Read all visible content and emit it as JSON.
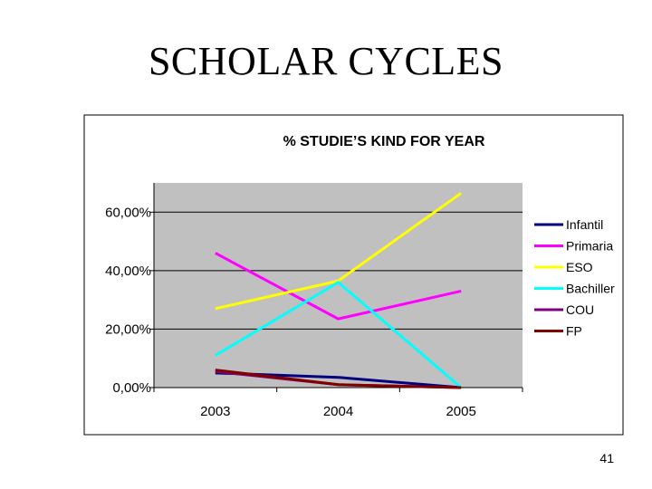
{
  "slide": {
    "title": "SCHOLAR CYCLES",
    "page_number": "41"
  },
  "chart_data": {
    "type": "line",
    "title": "% STUDIE’S KIND FOR YEAR",
    "xlabel": "",
    "ylabel": "",
    "categories": [
      "2003",
      "2004",
      "2005"
    ],
    "ylim": [
      0,
      0.7
    ],
    "yticks": [
      0,
      0.2,
      0.4,
      0.6
    ],
    "ytick_labels": [
      "0,00%",
      "20,00%",
      "40,00%",
      "60,00%"
    ],
    "grid": "horizontal",
    "plot_background": "#c0c0c0",
    "legend_position": "right",
    "series": [
      {
        "name": "Infantil",
        "color": "#000080",
        "values": [
          0.05,
          0.035,
          0.0
        ]
      },
      {
        "name": "Primaria",
        "color": "#ff00ff",
        "values": [
          0.46,
          0.235,
          0.33
        ]
      },
      {
        "name": "ESO",
        "color": "#ffff00",
        "values": [
          0.27,
          0.365,
          0.665
        ]
      },
      {
        "name": "Bachiller",
        "color": "#00ffff",
        "values": [
          0.11,
          0.36,
          0.0
        ]
      },
      {
        "name": "COU",
        "color": "#800080",
        "values": [
          0.055,
          0.01,
          0.0
        ]
      },
      {
        "name": "FP",
        "color": "#800000",
        "values": [
          0.06,
          0.01,
          0.0
        ]
      }
    ]
  }
}
